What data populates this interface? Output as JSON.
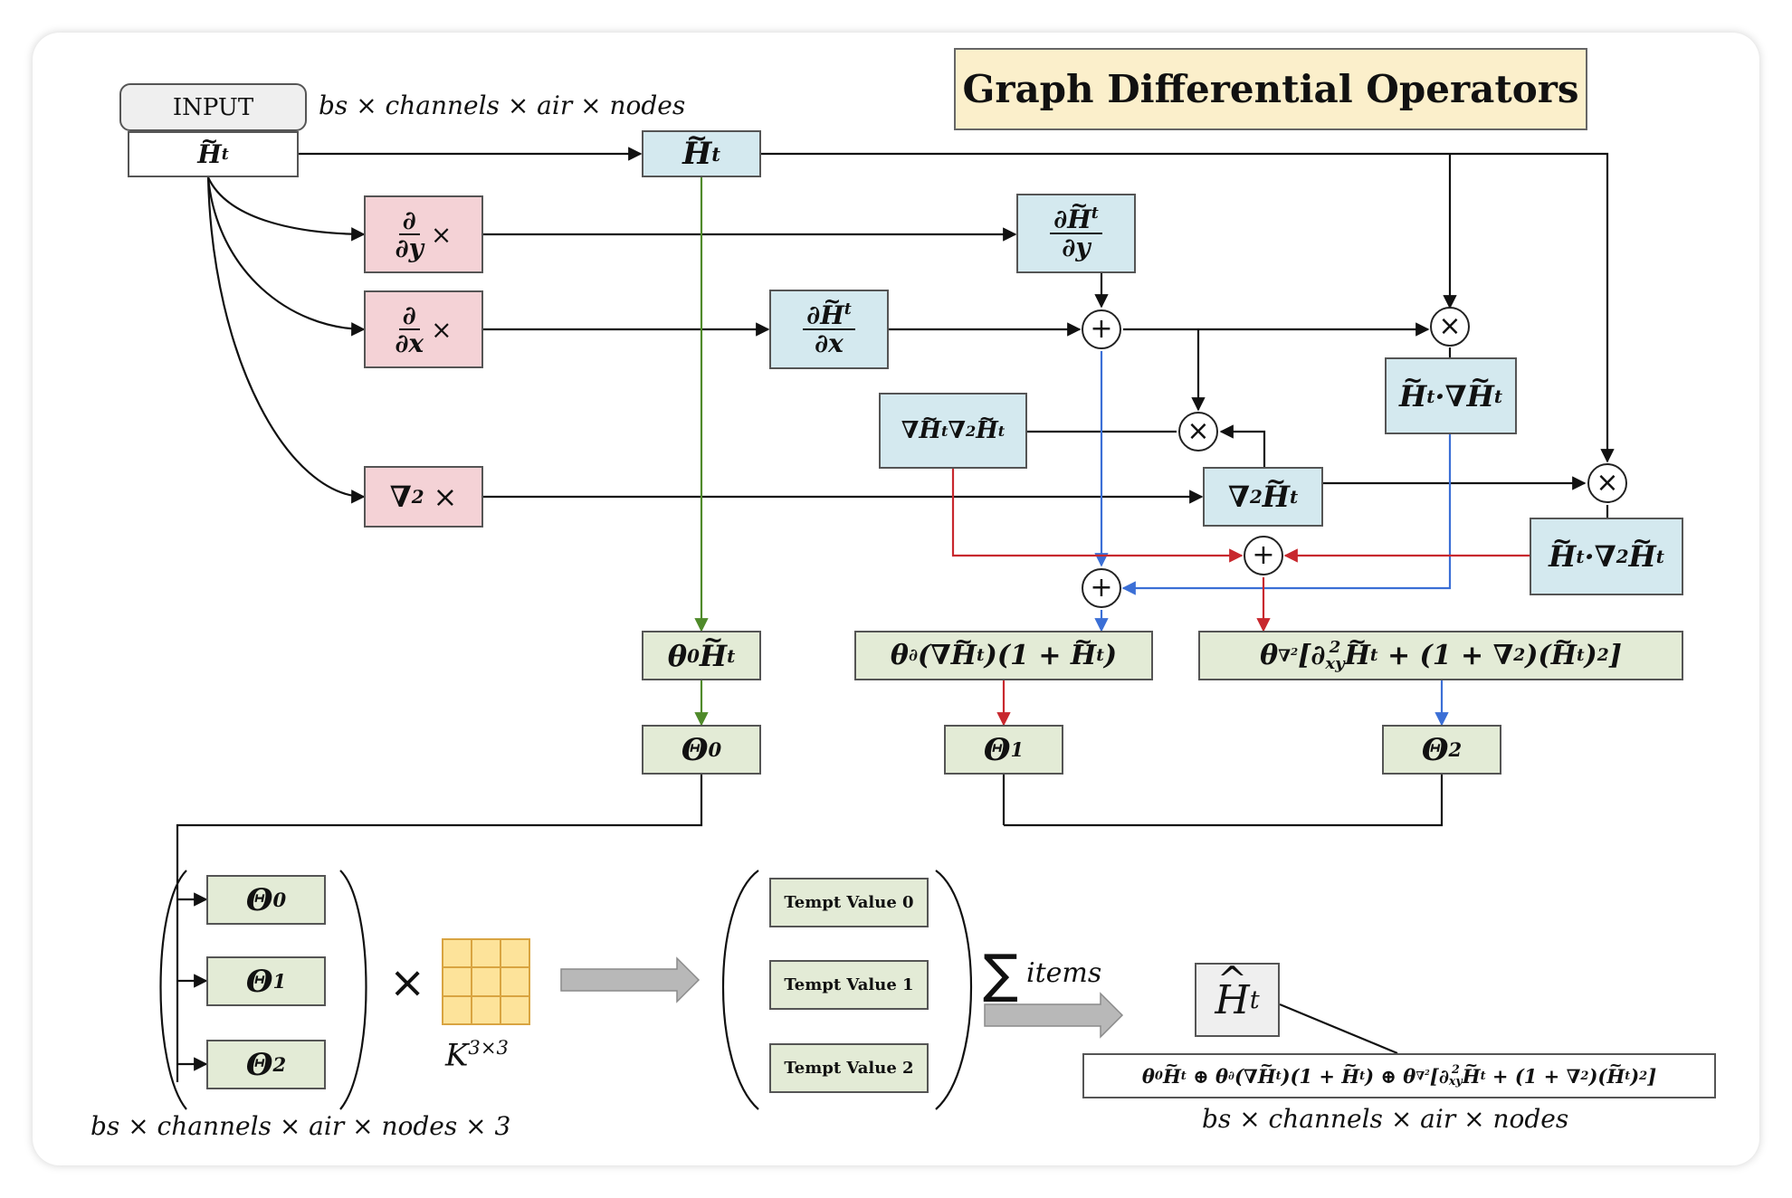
{
  "title": "Graph Differential Operators",
  "input": {
    "label": "INPUT",
    "shape": "bs × channels × air × nodes",
    "var": "H",
    "sup": "t"
  },
  "ops": {
    "dy": {
      "num": "∂",
      "den": "∂y",
      "mult": "×"
    },
    "dx": {
      "num": "∂",
      "den": "∂x",
      "mult": "×"
    },
    "lap": {
      "sym": "∇",
      "sup": "2",
      "mult": "×"
    }
  },
  "features": {
    "h": {
      "var": "H",
      "sup": "t"
    },
    "dhdy": {
      "num_pre": "∂",
      "var": "H",
      "sup": "t",
      "den": "∂y"
    },
    "dhdx": {
      "num_pre": "∂",
      "var": "H",
      "sup": "t",
      "den": "∂x"
    },
    "h_grad": {
      "var": "H",
      "sup": "t",
      "mid": "·∇",
      "var2": "H",
      "sup2": "t"
    },
    "grad_lap": {
      "pre": "∇",
      "var": "H",
      "sup": "t",
      "mid": "∇",
      "mid_sup": "2",
      "var2": "H",
      "sup2": "t"
    },
    "lap_h": {
      "pre": "∇",
      "pre_sup": "2",
      "var": "H",
      "sup": "t"
    },
    "h_lap": {
      "var": "H",
      "sup": "t",
      "mid": "·∇",
      "mid_sup": "2",
      "var2": "H",
      "sup2": "t"
    }
  },
  "operators": {
    "plus": "+",
    "times": "×"
  },
  "terms": {
    "t0": {
      "a": "θ",
      "a_sub": "0",
      "var": "H",
      "sup": "t"
    },
    "t1": {
      "a": "θ",
      "a_sub": "∂",
      "b": "(∇",
      "var": "H",
      "sup": "t",
      "c": ")(1 + ",
      "var2": "H",
      "sup2": "t",
      "d": ")"
    },
    "t2": {
      "a": "θ",
      "a_sub": "∇",
      "a_sub_sup": "2",
      "b": "[∂",
      "b_sup": "2",
      "b_sub": "xy",
      "var": "H",
      "sup": "t",
      "c": " + (1 + ∇",
      "c_sup": "2",
      "d": ")(",
      "var2": "H",
      "sup2": "t",
      "e": ")",
      "e_sup": "2",
      "f": "]"
    }
  },
  "thetas": [
    {
      "sym": "Θ",
      "sub": "0"
    },
    {
      "sym": "Θ",
      "sub": "1"
    },
    {
      "sym": "Θ",
      "sub": "2"
    }
  ],
  "bottom": {
    "multiply": "×",
    "kernel": "K",
    "kernel_sup": "3×3",
    "stack_shape": "bs × channels × air × nodes × 3",
    "tempt_values": [
      "Tempt Value 0",
      "Tempt Value 1",
      "Tempt Value 2"
    ],
    "sum_sym": "∑",
    "sum_label": "items",
    "output_var": "H",
    "output_sup": "t",
    "formula": {
      "p1": "θ",
      "p1_sub": "0",
      "v1": "H",
      "v1_sup": "t",
      "op1": " ⊕ θ",
      "op1_sub": "∂",
      "p2": "(∇",
      "v2": "H",
      "v2_sup": "t",
      "p3": ")(1 + ",
      "v3": "H",
      "v3_sup": "t",
      "p4": ")",
      "op2": " ⊕ θ",
      "op2_sub": "∇",
      "op2_sub_sup": "2",
      "p5": "[∂",
      "p5_sup": "2",
      "p5_sub": "xy",
      "v4": "H",
      "v4_sup": "t",
      "p6": " + (1 + ∇",
      "p6_sup": "2",
      "p7": ")(",
      "v5": "H",
      "v5_sup": "t",
      "p8": ")",
      "p8_sup": "2",
      "p9": "]"
    },
    "output_shape": "bs × channels × air × nodes"
  },
  "colors": {
    "blue_box": "#d4e9ef",
    "pink_box": "#f4d2d6",
    "green_box": "#e3ebd6",
    "title_box": "#fbefcb",
    "kernel": "#fde39a",
    "arrow_black": "#111111",
    "arrow_green": "#4f8a2a",
    "arrow_red": "#c8282e",
    "arrow_blue": "#3b6fd6"
  }
}
